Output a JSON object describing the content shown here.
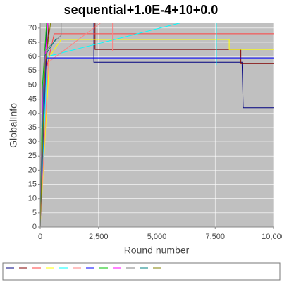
{
  "chart_data": {
    "type": "line",
    "title": "sequential+1.0E-4+10+0.0",
    "x_label": "Round number",
    "y_label": "GlobalInfo",
    "xlim": [
      0,
      10000
    ],
    "ylim": [
      0,
      71.7
    ],
    "xticks": [
      0,
      {
        "value": 2500,
        "label": "2,500"
      },
      {
        "value": 5000,
        "label": "5,000"
      },
      {
        "value": 7500,
        "label": "7,500"
      },
      {
        "value": 10000,
        "label": "10,000"
      }
    ],
    "yticks": [
      0,
      5,
      10,
      15,
      20,
      25,
      30,
      35,
      40,
      45,
      50,
      55,
      60,
      65,
      70
    ],
    "grid": true,
    "legend": "bottom",
    "series": [
      {
        "color": "#000080",
        "x": [
          0,
          150,
          300,
          2300,
          2300,
          8650,
          8700,
          10000
        ],
        "values": [
          0,
          45,
          75,
          75,
          58,
          58,
          42,
          42
        ]
      },
      {
        "color": "#800000",
        "x": [
          0,
          200,
          400,
          2350,
          2350,
          8600,
          8600,
          10000
        ],
        "values": [
          0,
          50,
          75,
          75,
          62.5,
          62.5,
          57.5,
          57.5
        ]
      },
      {
        "color": "#ff4040",
        "x": [
          0,
          250,
          600,
          10000
        ],
        "values": [
          0,
          55,
          68,
          68
        ]
      },
      {
        "color": "#ffff00",
        "x": [
          0,
          400,
          900,
          8100,
          8100,
          10000
        ],
        "values": [
          0,
          60,
          66,
          66,
          62.5,
          62.5
        ]
      },
      {
        "color": "#00ffff",
        "x": [
          0,
          300,
          7550,
          7550
        ],
        "values": [
          0,
          60,
          75,
          57
        ]
      },
      {
        "color": "#ff8080",
        "x": [
          0,
          350,
          3100,
          3100
        ],
        "values": [
          0,
          58,
          75,
          62
        ]
      },
      {
        "color": "#0000ff",
        "x": [
          0,
          250,
          10000
        ],
        "values": [
          0,
          59.5,
          59.5
        ]
      },
      {
        "color": "#00c000",
        "x": [
          0,
          100,
          300
        ],
        "values": [
          0,
          50,
          75
        ]
      },
      {
        "color": "#ff00ff",
        "x": [
          0,
          120,
          350
        ],
        "values": [
          0,
          48,
          75
        ]
      },
      {
        "color": "#808080",
        "x": [
          0,
          200,
          900,
          900
        ],
        "values": [
          0,
          62,
          67.5,
          75
        ]
      },
      {
        "color": "#008080",
        "x": [
          0,
          180,
          700
        ],
        "values": [
          0,
          60,
          66.5
        ]
      },
      {
        "color": "#808000",
        "x": [
          0,
          220,
          500
        ],
        "values": [
          0,
          58,
          75
        ]
      }
    ]
  }
}
